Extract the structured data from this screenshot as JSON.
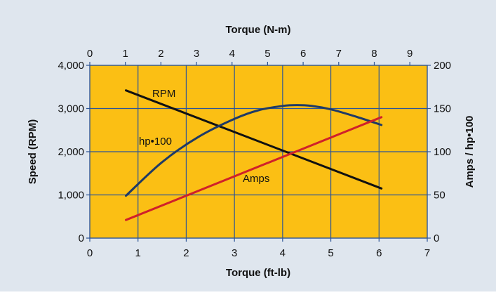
{
  "chart_data": {
    "type": "line",
    "colors": {
      "background": "#dfe6ee",
      "plot_area": "#fbbf14",
      "grid": "#2d5596",
      "axis": "#2d5596",
      "rpm": "#111111",
      "hp": "#1f3a66",
      "amps": "#d0202a"
    },
    "grid": true,
    "x_axis_bottom": {
      "label": "Torque (ft-lb)",
      "range": [
        0,
        7
      ],
      "ticks": [
        "0",
        "1",
        "2",
        "3",
        "4",
        "5",
        "6",
        "7"
      ]
    },
    "x_axis_top": {
      "label": "Torque (N-m)",
      "range": [
        0,
        9.49
      ],
      "ticks": [
        "0",
        "1",
        "2",
        "3",
        "4",
        "5",
        "6",
        "7",
        "8",
        "9"
      ]
    },
    "y_axis_left": {
      "label": "Speed (RPM)",
      "range": [
        0,
        4000
      ],
      "ticks": [
        "0",
        "1,000",
        "2,000",
        "3,000",
        "4,000"
      ]
    },
    "y_axis_right": {
      "label": "Amps / hp•100",
      "range": [
        0,
        200
      ],
      "ticks": [
        "0",
        "50",
        "100",
        "150",
        "200"
      ]
    },
    "series": [
      {
        "name": "RPM",
        "axis": "left",
        "x": [
          0.75,
          6.05
        ],
        "values": [
          3420,
          1150
        ]
      },
      {
        "name": "hp•100",
        "axis": "right",
        "x": [
          0.75,
          1.5,
          2.25,
          3.0,
          3.5,
          4.0,
          4.3,
          4.6,
          5.0,
          5.5,
          6.05
        ],
        "values": [
          49,
          88,
          117,
          138,
          148,
          153,
          154,
          153,
          149,
          141,
          131
        ]
      },
      {
        "name": "Amps",
        "axis": "right",
        "x": [
          0.75,
          6.05
        ],
        "values": [
          21,
          140
        ]
      }
    ]
  }
}
